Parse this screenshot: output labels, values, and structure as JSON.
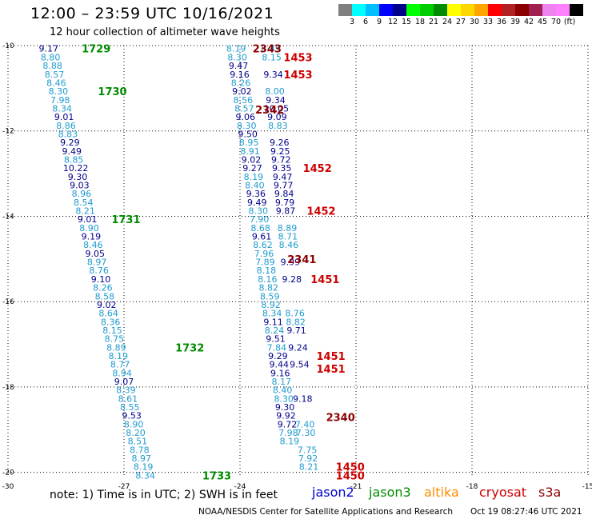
{
  "header": {
    "title": "12:00 – 23:59 UTC 10/16/2021",
    "subtitle": "12 hour collection of altimeter wave heights"
  },
  "colorbar": {
    "unit": "(ft)",
    "colors": [
      "#7f7f7f",
      "#00ffff",
      "#00bfff",
      "#0000ff",
      "#00008b",
      "#00ff00",
      "#00cd00",
      "#008b00",
      "#ffff00",
      "#ffd700",
      "#ffa500",
      "#ff0000",
      "#b22222",
      "#8b0000",
      "#a02050",
      "#ee82ee",
      "#ff80ff",
      "#000000"
    ],
    "labels": [
      "3",
      "6",
      "9",
      "12",
      "15",
      "18",
      "21",
      "24",
      "27",
      "30",
      "33",
      "36",
      "39",
      "42",
      "45",
      "70",
      "(ft)"
    ]
  },
  "axes": {
    "lat_labels": [
      "-10",
      "-12",
      "-14",
      "-16",
      "-18",
      "-20"
    ],
    "lon_labels": [
      "-30",
      "-27",
      "-24",
      "-21",
      "-18",
      "-15"
    ]
  },
  "satellite_colors": {
    "jason2": "#0000cc",
    "jason3": "#008b00",
    "altika": "#ff8c00",
    "cryosat": "#cc0000",
    "s3a": "#8b0000"
  },
  "wave_colors": {
    "light": "#1f9bcf",
    "dark": "#00008b"
  },
  "chart_data": {
    "type": "scatter",
    "title": "12:00 – 23:59 UTC 10/16/2021",
    "subtitle": "12 hour collection of altimeter wave heights",
    "xlabel": "",
    "ylabel": "",
    "xlim": [
      -30,
      -15
    ],
    "ylim": [
      -20.1,
      -10
    ],
    "grid": true,
    "unit": "ft",
    "track1": [
      {
        "lat": -10.07,
        "lon": -28.95,
        "v": "9.17"
      },
      {
        "lat": -10.27,
        "lon": -28.9,
        "v": "8.80"
      },
      {
        "lat": -10.47,
        "lon": -28.85,
        "v": "8.88"
      },
      {
        "lat": -10.67,
        "lon": -28.8,
        "v": "8.57"
      },
      {
        "lat": -10.87,
        "lon": -28.75,
        "v": "8.46"
      },
      {
        "lat": -11.07,
        "lon": -28.7,
        "v": "8.30"
      },
      {
        "lat": -11.27,
        "lon": -28.65,
        "v": "7.98"
      },
      {
        "lat": -11.47,
        "lon": -28.6,
        "v": "8.34"
      },
      {
        "lat": -11.67,
        "lon": -28.55,
        "v": "9.01"
      },
      {
        "lat": -11.87,
        "lon": -28.5,
        "v": "8.86"
      },
      {
        "lat": -12.07,
        "lon": -28.45,
        "v": "8.83"
      },
      {
        "lat": -12.27,
        "lon": -28.4,
        "v": "9.29"
      },
      {
        "lat": -12.47,
        "lon": -28.35,
        "v": "9.49"
      },
      {
        "lat": -12.67,
        "lon": -28.3,
        "v": "8.85"
      },
      {
        "lat": -12.87,
        "lon": -28.25,
        "v": "10.22"
      },
      {
        "lat": -13.07,
        "lon": -28.2,
        "v": "9.30"
      },
      {
        "lat": -13.27,
        "lon": -28.15,
        "v": "9.03"
      },
      {
        "lat": -13.47,
        "lon": -28.1,
        "v": "8.96"
      },
      {
        "lat": -13.67,
        "lon": -28.05,
        "v": "8.54"
      },
      {
        "lat": -13.87,
        "lon": -28.0,
        "v": "8.21"
      },
      {
        "lat": -14.07,
        "lon": -27.95,
        "v": "9.01"
      },
      {
        "lat": -14.27,
        "lon": -27.9,
        "v": "8.90"
      },
      {
        "lat": -14.47,
        "lon": -27.85,
        "v": "9.19"
      },
      {
        "lat": -14.67,
        "lon": -27.8,
        "v": "8.46"
      },
      {
        "lat": -14.87,
        "lon": -27.75,
        "v": "9.05"
      },
      {
        "lat": -15.07,
        "lon": -27.7,
        "v": "8.97"
      },
      {
        "lat": -15.27,
        "lon": -27.65,
        "v": "8.76"
      },
      {
        "lat": -15.47,
        "lon": -27.6,
        "v": "9.10"
      },
      {
        "lat": -15.67,
        "lon": -27.55,
        "v": "8.26"
      },
      {
        "lat": -15.87,
        "lon": -27.5,
        "v": "8.58"
      },
      {
        "lat": -16.07,
        "lon": -27.45,
        "v": "9.02"
      },
      {
        "lat": -16.27,
        "lon": -27.4,
        "v": "8.64"
      },
      {
        "lat": -16.47,
        "lon": -27.35,
        "v": "8.36"
      },
      {
        "lat": -16.67,
        "lon": -27.3,
        "v": "8.15"
      },
      {
        "lat": -16.87,
        "lon": -27.25,
        "v": "8.75"
      },
      {
        "lat": -17.07,
        "lon": -27.2,
        "v": "8.89"
      },
      {
        "lat": -17.27,
        "lon": -27.15,
        "v": "8.19"
      },
      {
        "lat": -17.47,
        "lon": -27.1,
        "v": "8.77"
      },
      {
        "lat": -17.67,
        "lon": -27.05,
        "v": "8.94"
      },
      {
        "lat": -17.87,
        "lon": -27.0,
        "v": "9.07"
      },
      {
        "lat": -18.07,
        "lon": -26.95,
        "v": "8.39"
      },
      {
        "lat": -18.27,
        "lon": -26.9,
        "v": "8.61"
      },
      {
        "lat": -18.47,
        "lon": -26.85,
        "v": "8.55"
      },
      {
        "lat": -18.67,
        "lon": -26.8,
        "v": "9.53"
      },
      {
        "lat": -18.87,
        "lon": -26.75,
        "v": "8.90"
      },
      {
        "lat": -19.07,
        "lon": -26.7,
        "v": "8.20"
      },
      {
        "lat": -19.27,
        "lon": -26.65,
        "v": "8.51"
      },
      {
        "lat": -19.47,
        "lon": -26.6,
        "v": "8.78"
      },
      {
        "lat": -19.67,
        "lon": -26.55,
        "v": "8.97"
      },
      {
        "lat": -19.87,
        "lon": -26.5,
        "v": "8.19"
      },
      {
        "lat": -20.07,
        "lon": -26.45,
        "v": "8.34"
      }
    ],
    "track2": [
      {
        "lat": -10.07,
        "lon": -24.1,
        "v": "8.19"
      },
      {
        "lat": -10.27,
        "lon": -24.07,
        "v": "8.30"
      },
      {
        "lat": -10.47,
        "lon": -24.04,
        "v": "9.47"
      },
      {
        "lat": -10.67,
        "lon": -24.01,
        "v": "9.16"
      },
      {
        "lat": -10.87,
        "lon": -23.98,
        "v": "8.26"
      },
      {
        "lat": -11.07,
        "lon": -23.95,
        "v": "9.02"
      },
      {
        "lat": -11.27,
        "lon": -23.92,
        "v": "8.56"
      },
      {
        "lat": -11.47,
        "lon": -23.89,
        "v": "8.57"
      },
      {
        "lat": -11.67,
        "lon": -23.86,
        "v": "9.06"
      },
      {
        "lat": -11.87,
        "lon": -23.83,
        "v": "8.30"
      },
      {
        "lat": -12.07,
        "lon": -23.8,
        "v": "9.50"
      },
      {
        "lat": -12.27,
        "lon": -23.77,
        "v": "8.95"
      },
      {
        "lat": -12.47,
        "lon": -23.74,
        "v": "8.91"
      },
      {
        "lat": -12.67,
        "lon": -23.71,
        "v": "9.02"
      },
      {
        "lat": -12.87,
        "lon": -23.68,
        "v": "9.27"
      },
      {
        "lat": -13.07,
        "lon": -23.65,
        "v": "8.19"
      },
      {
        "lat": -13.27,
        "lon": -23.62,
        "v": "8.40"
      },
      {
        "lat": -13.47,
        "lon": -23.59,
        "v": "9.36"
      },
      {
        "lat": -13.67,
        "lon": -23.56,
        "v": "9.49"
      },
      {
        "lat": -13.87,
        "lon": -23.53,
        "v": "8.30"
      },
      {
        "lat": -14.07,
        "lon": -23.5,
        "v": "7.90"
      },
      {
        "lat": -14.27,
        "lon": -23.47,
        "v": "8.68"
      },
      {
        "lat": -14.47,
        "lon": -23.44,
        "v": "9.61"
      },
      {
        "lat": -14.67,
        "lon": -23.41,
        "v": "8.62"
      },
      {
        "lat": -14.87,
        "lon": -23.38,
        "v": "7.96"
      },
      {
        "lat": -15.07,
        "lon": -23.35,
        "v": "7.89"
      },
      {
        "lat": -15.27,
        "lon": -23.32,
        "v": "8.18"
      },
      {
        "lat": -15.47,
        "lon": -23.29,
        "v": "8.16"
      },
      {
        "lat": -15.67,
        "lon": -23.26,
        "v": "8.82"
      },
      {
        "lat": -15.87,
        "lon": -23.23,
        "v": "8.59"
      },
      {
        "lat": -16.07,
        "lon": -23.2,
        "v": "8.92"
      },
      {
        "lat": -16.27,
        "lon": -23.17,
        "v": "8.34"
      },
      {
        "lat": -16.47,
        "lon": -23.14,
        "v": "9.11"
      },
      {
        "lat": -16.67,
        "lon": -23.11,
        "v": "8.24"
      },
      {
        "lat": -16.87,
        "lon": -23.08,
        "v": "9.51"
      },
      {
        "lat": -17.07,
        "lon": -23.05,
        "v": "7.84"
      },
      {
        "lat": -17.27,
        "lon": -23.02,
        "v": "9.29"
      },
      {
        "lat": -17.47,
        "lon": -22.99,
        "v": "9.44"
      },
      {
        "lat": -17.67,
        "lon": -22.96,
        "v": "9.16"
      },
      {
        "lat": -17.87,
        "lon": -22.93,
        "v": "8.17"
      },
      {
        "lat": -18.07,
        "lon": -22.9,
        "v": "8.40"
      },
      {
        "lat": -18.27,
        "lon": -22.87,
        "v": "8.30"
      },
      {
        "lat": -18.47,
        "lon": -22.84,
        "v": "9.30"
      },
      {
        "lat": -18.67,
        "lon": -22.81,
        "v": "9.92"
      },
      {
        "lat": -18.87,
        "lon": -22.78,
        "v": "9.72"
      },
      {
        "lat": -19.07,
        "lon": -22.75,
        "v": "7.98"
      },
      {
        "lat": -19.27,
        "lon": -22.72,
        "v": "8.19"
      }
    ],
    "track3": [
      {
        "lat": -10.07,
        "lon": -23.2,
        "v": "8.49"
      },
      {
        "lat": -10.27,
        "lon": -23.18,
        "v": "8.15"
      },
      {
        "lat": -10.67,
        "lon": -23.14,
        "v": "9.34"
      },
      {
        "lat": -11.07,
        "lon": -23.1,
        "v": "8.00"
      },
      {
        "lat": -11.27,
        "lon": -23.08,
        "v": "9.34"
      },
      {
        "lat": -11.47,
        "lon": -23.06,
        "v": "10.05"
      },
      {
        "lat": -11.67,
        "lon": -23.04,
        "v": "9.09"
      },
      {
        "lat": -11.87,
        "lon": -23.02,
        "v": "8.83"
      },
      {
        "lat": -12.27,
        "lon": -22.98,
        "v": "9.26"
      },
      {
        "lat": -12.47,
        "lon": -22.96,
        "v": "9.25"
      },
      {
        "lat": -12.67,
        "lon": -22.94,
        "v": "9.72"
      },
      {
        "lat": -12.87,
        "lon": -22.92,
        "v": "9.35"
      },
      {
        "lat": -13.07,
        "lon": -22.9,
        "v": "9.47"
      },
      {
        "lat": -13.27,
        "lon": -22.88,
        "v": "9.77"
      },
      {
        "lat": -13.47,
        "lon": -22.86,
        "v": "9.84"
      },
      {
        "lat": -13.67,
        "lon": -22.84,
        "v": "9.79"
      },
      {
        "lat": -13.87,
        "lon": -22.82,
        "v": "9.87"
      },
      {
        "lat": -14.27,
        "lon": -22.78,
        "v": "8.89"
      },
      {
        "lat": -14.47,
        "lon": -22.76,
        "v": "8.71"
      },
      {
        "lat": -14.67,
        "lon": -22.74,
        "v": "8.46"
      },
      {
        "lat": -15.07,
        "lon": -22.7,
        "v": "9.99"
      },
      {
        "lat": -15.47,
        "lon": -22.66,
        "v": "9.28"
      },
      {
        "lat": -16.27,
        "lon": -22.58,
        "v": "8.76"
      },
      {
        "lat": -16.47,
        "lon": -22.56,
        "v": "8.82"
      },
      {
        "lat": -16.67,
        "lon": -22.54,
        "v": "9.71"
      },
      {
        "lat": -17.07,
        "lon": -22.5,
        "v": "9.24"
      },
      {
        "lat": -17.47,
        "lon": -22.46,
        "v": "9.54"
      },
      {
        "lat": -18.27,
        "lon": -22.38,
        "v": "9.18"
      },
      {
        "lat": -18.87,
        "lon": -22.32,
        "v": "7.40"
      },
      {
        "lat": -19.07,
        "lon": -22.3,
        "v": "7.30"
      },
      {
        "lat": -19.47,
        "lon": -22.26,
        "v": "7.75"
      },
      {
        "lat": -19.67,
        "lon": -22.24,
        "v": "7.92"
      },
      {
        "lat": -19.87,
        "lon": -22.22,
        "v": "8.21"
      }
    ],
    "time_labels": [
      {
        "lat": -10.07,
        "lon": -27.72,
        "t": "1729",
        "sat": "jason3"
      },
      {
        "lat": -11.07,
        "lon": -27.3,
        "t": "1730",
        "sat": "jason3"
      },
      {
        "lat": -14.07,
        "lon": -26.95,
        "t": "1731",
        "sat": "jason3"
      },
      {
        "lat": -17.07,
        "lon": -25.3,
        "t": "1732",
        "sat": "jason3"
      },
      {
        "lat": -20.07,
        "lon": -24.6,
        "t": "1733",
        "sat": "jason3"
      },
      {
        "lat": -10.07,
        "lon": -23.3,
        "t": "2343",
        "sat": "s3a"
      },
      {
        "lat": -11.5,
        "lon": -23.23,
        "t": "2342",
        "sat": "s3a"
      },
      {
        "lat": -15.0,
        "lon": -22.4,
        "t": "2341",
        "sat": "s3a"
      },
      {
        "lat": -18.7,
        "lon": -21.4,
        "t": "2340",
        "sat": "s3a"
      },
      {
        "lat": -10.27,
        "lon": -22.5,
        "t": "1453",
        "sat": "cryosat"
      },
      {
        "lat": -10.67,
        "lon": -22.5,
        "t": "1453",
        "sat": "cryosat"
      },
      {
        "lat": -12.87,
        "lon": -22.0,
        "t": "1452",
        "sat": "cryosat"
      },
      {
        "lat": -13.87,
        "lon": -21.9,
        "t": "1452",
        "sat": "cryosat"
      },
      {
        "lat": -15.47,
        "lon": -21.8,
        "t": "1451",
        "sat": "cryosat"
      },
      {
        "lat": -17.27,
        "lon": -21.65,
        "t": "1451",
        "sat": "cryosat"
      },
      {
        "lat": -17.57,
        "lon": -21.65,
        "t": "1451",
        "sat": "cryosat"
      },
      {
        "lat": -19.87,
        "lon": -21.15,
        "t": "1450",
        "sat": "cryosat"
      },
      {
        "lat": -20.07,
        "lon": -21.15,
        "t": "1450",
        "sat": "cryosat"
      }
    ]
  },
  "legend": {
    "note": "note:  1) Time is in UTC;  2) SWH is in feet",
    "items": [
      {
        "name": "jason2",
        "sat": "jason2"
      },
      {
        "name": "jason3",
        "sat": "jason3"
      },
      {
        "name": "altika",
        "sat": "altika"
      },
      {
        "name": "cryosat",
        "sat": "cryosat"
      },
      {
        "name": "s3a",
        "sat": "s3a"
      }
    ]
  },
  "footer": {
    "credit": "NOAA/NESDIS Center for Satellite Applications and Research",
    "timestamp": "Oct 19 08:27:46 UTC 2021"
  }
}
